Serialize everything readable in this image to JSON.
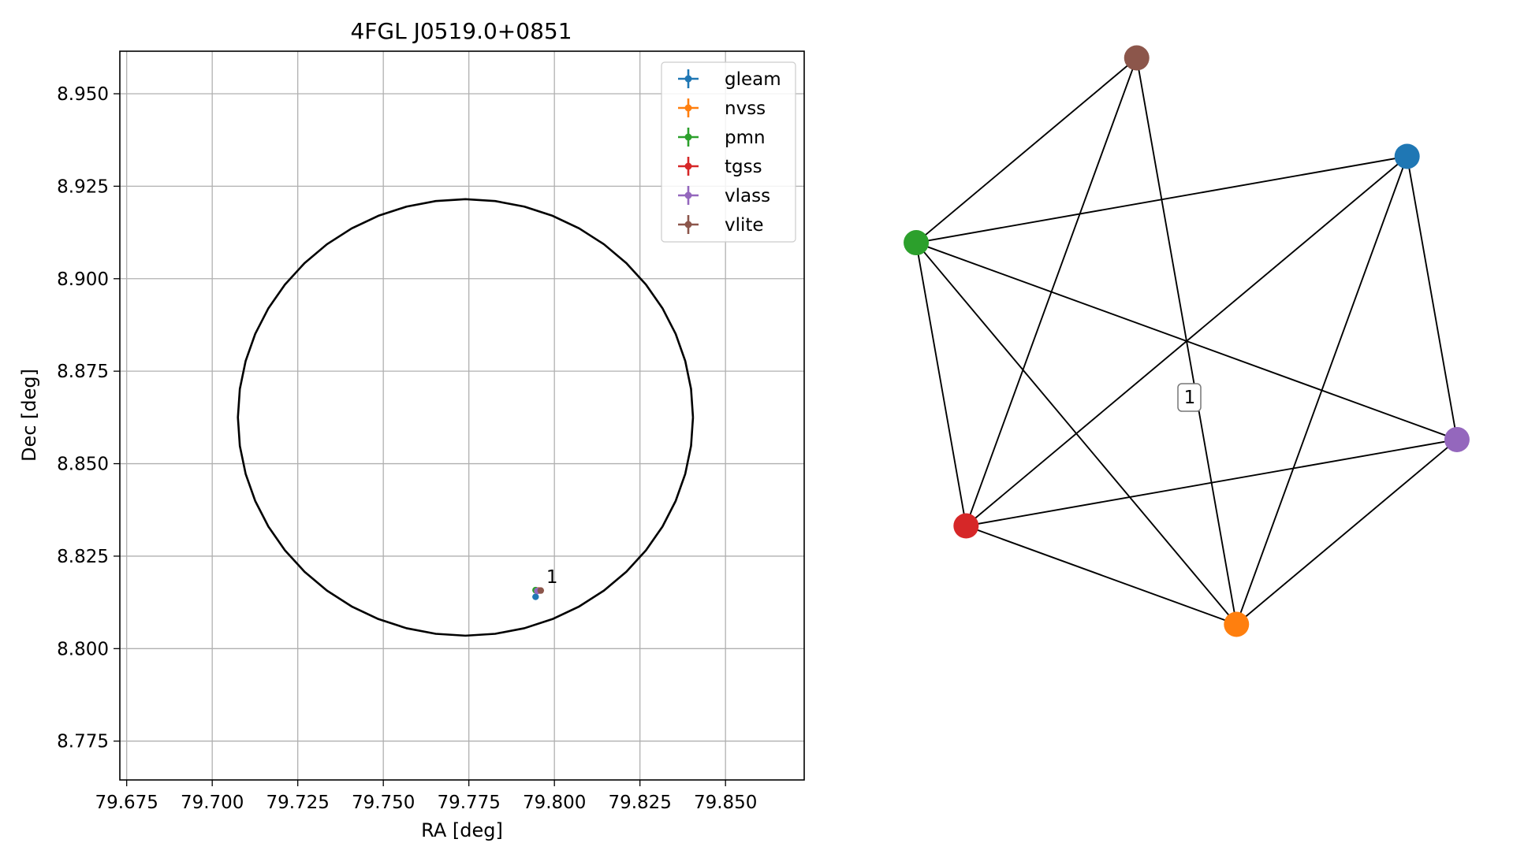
{
  "chart_data": [
    {
      "type": "scatter",
      "title": "4FGL J0519.0+0851",
      "xlabel": "RA [deg]",
      "ylabel": "Dec [deg]",
      "xlim": [
        79.673,
        79.873
      ],
      "ylim": [
        8.7645,
        8.9615
      ],
      "xticks": [
        79.675,
        79.7,
        79.725,
        79.75,
        79.775,
        79.8,
        79.825,
        79.85
      ],
      "xtick_labels": [
        "79.675",
        "79.700",
        "79.725",
        "79.750",
        "79.775",
        "79.800",
        "79.825",
        "79.850"
      ],
      "yticks": [
        8.775,
        8.8,
        8.825,
        8.85,
        8.875,
        8.9,
        8.925,
        8.95
      ],
      "ytick_labels": [
        "8.775",
        "8.800",
        "8.825",
        "8.850",
        "8.875",
        "8.900",
        "8.925",
        "8.950"
      ],
      "grid": true,
      "legend_position": "top-right",
      "series": [
        {
          "name": "gleam",
          "color": "#1f77b4",
          "points": [
            {
              "x": 79.7945,
              "y": 8.814
            }
          ]
        },
        {
          "name": "nvss",
          "color": "#ff7f0e",
          "points": [
            {
              "x": 79.795,
              "y": 8.8157
            }
          ]
        },
        {
          "name": "pmn",
          "color": "#2ca02c",
          "points": [
            {
              "x": 79.7945,
              "y": 8.8158
            }
          ]
        },
        {
          "name": "tgss",
          "color": "#d62728",
          "points": [
            {
              "x": 79.7955,
              "y": 8.8157
            }
          ]
        },
        {
          "name": "vlass",
          "color": "#9467bd",
          "points": [
            {
              "x": 79.795,
              "y": 8.8156
            }
          ]
        },
        {
          "name": "vlite",
          "color": "#8c564b",
          "points": [
            {
              "x": 79.796,
              "y": 8.8157
            }
          ]
        }
      ],
      "ellipse": {
        "center_x": 79.774,
        "center_y": 8.8625,
        "semi_axis_ra": 0.0665,
        "semi_axis_dec": 0.059
      },
      "annotations": [
        {
          "text": "1",
          "x": 79.7967,
          "y": 8.8165
        }
      ]
    },
    {
      "type": "network",
      "nodes": [
        {
          "id": "vlite",
          "color": "#8c564b"
        },
        {
          "id": "pmn",
          "color": "#2ca02c"
        },
        {
          "id": "tgss",
          "color": "#d62728"
        },
        {
          "id": "nvss",
          "color": "#ff7f0e"
        },
        {
          "id": "vlass",
          "color": "#9467bd"
        },
        {
          "id": "gleam",
          "color": "#1f77b4"
        }
      ],
      "edges": [
        [
          "vlite",
          "pmn"
        ],
        [
          "vlite",
          "tgss"
        ],
        [
          "vlite",
          "nvss"
        ],
        [
          "pmn",
          "tgss"
        ],
        [
          "pmn",
          "nvss"
        ],
        [
          "pmn",
          "vlass"
        ],
        [
          "pmn",
          "gleam"
        ],
        [
          "tgss",
          "nvss"
        ],
        [
          "tgss",
          "vlass"
        ],
        [
          "tgss",
          "gleam"
        ],
        [
          "nvss",
          "vlass"
        ],
        [
          "nvss",
          "gleam"
        ],
        [
          "vlass",
          "gleam"
        ]
      ],
      "cluster_label": "1"
    }
  ]
}
